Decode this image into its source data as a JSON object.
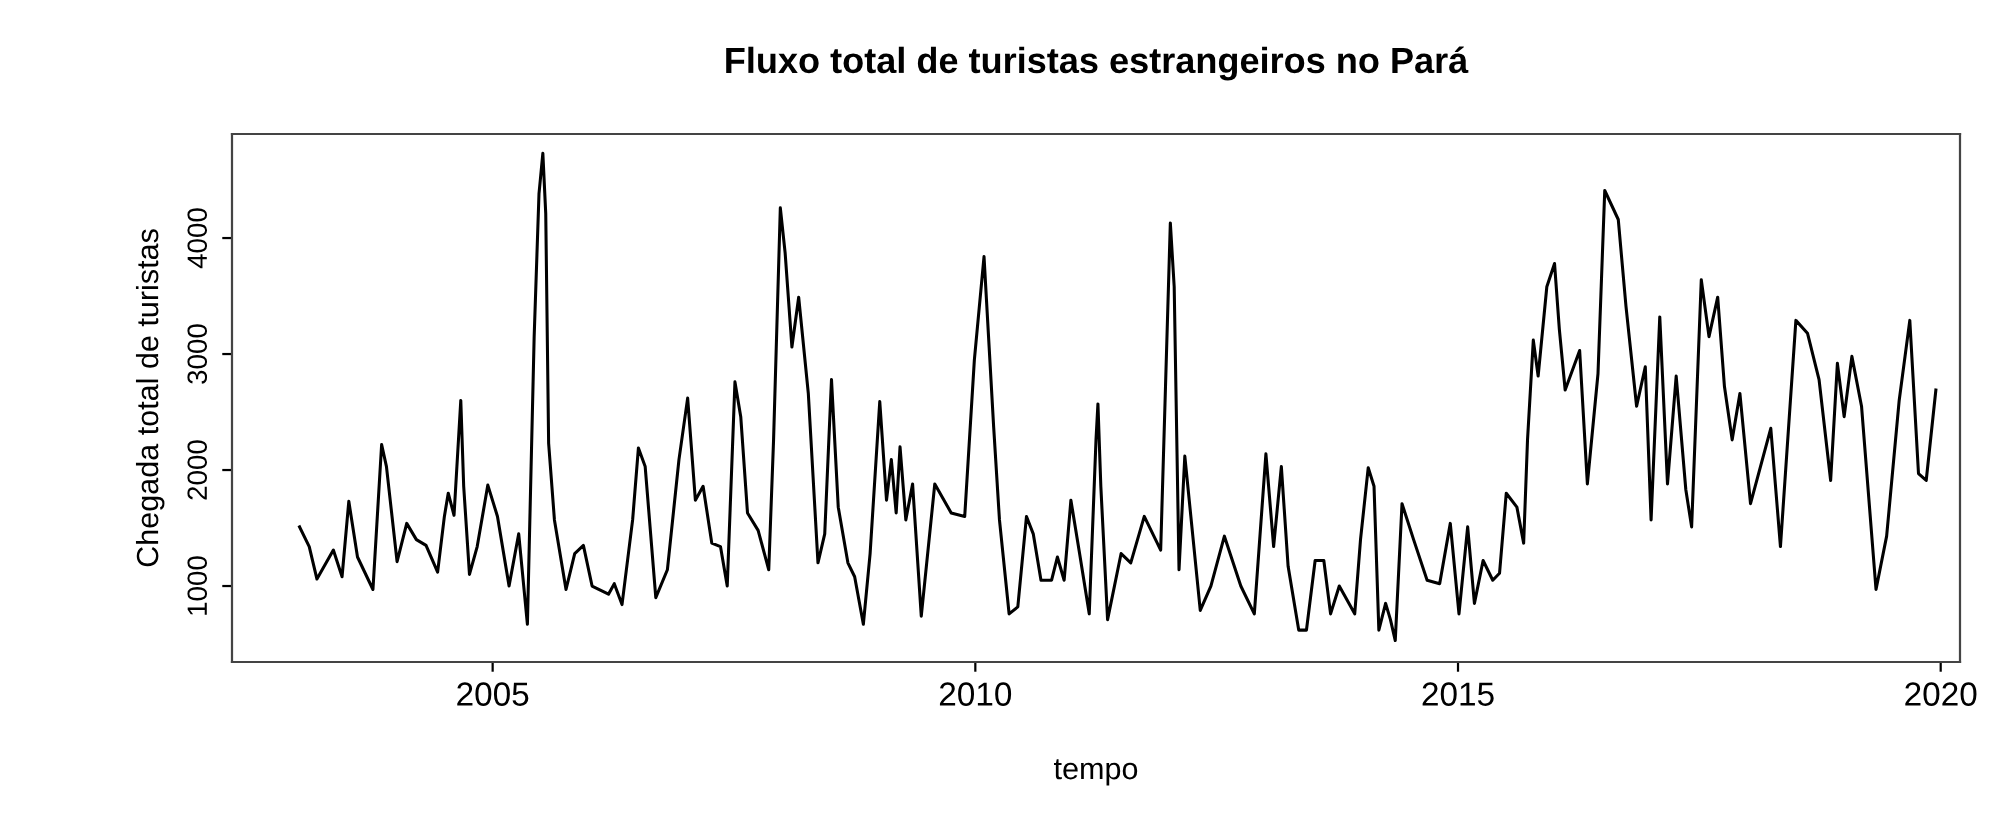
{
  "chart_data": {
    "type": "line",
    "title": "Fluxo total de turistas estrangeiros no Pará",
    "xlabel": "tempo",
    "ylabel": "Chegada total de turistas",
    "xlim": [
      2002.3,
      2020.2
    ],
    "ylim": [
      345,
      4897
    ],
    "xticks": [
      2005,
      2010,
      2015,
      2020
    ],
    "yticks": [
      1000,
      2000,
      3000,
      4000
    ],
    "grid": false,
    "marker": "none",
    "line_style": "solid",
    "series": [
      {
        "color": "#000000",
        "x": [
          2003.0,
          2003.1,
          2003.18,
          2003.35,
          2003.44,
          2003.51,
          2003.6,
          2003.76,
          2003.85,
          2003.9,
          2004.01,
          2004.11,
          2004.21,
          2004.31,
          2004.43,
          2004.5,
          2004.54,
          2004.6,
          2004.67,
          2004.7,
          2004.76,
          2004.84,
          2004.95,
          2005.05,
          2005.17,
          2005.27,
          2005.36,
          2005.43,
          2005.48,
          2005.52,
          2005.55,
          2005.58,
          2005.64,
          2005.76,
          2005.85,
          2005.94,
          2006.03,
          2006.2,
          2006.26,
          2006.34,
          2006.45,
          2006.51,
          2006.58,
          2006.69,
          2006.81,
          2006.93,
          2007.02,
          2007.1,
          2007.18,
          2007.27,
          2007.36,
          2007.43,
          2007.51,
          2007.57,
          2007.64,
          2007.75,
          2007.86,
          2007.91,
          2007.98,
          2008.03,
          2008.1,
          2008.17,
          2008.27,
          2008.37,
          2008.44,
          2008.51,
          2008.58,
          2008.68,
          2008.75,
          2008.84,
          2008.91,
          2009.01,
          2009.08,
          2009.13,
          2009.18,
          2009.22,
          2009.28,
          2009.35,
          2009.44,
          2009.58,
          2009.75,
          2009.89,
          2009.99,
          2010.09,
          2010.19,
          2010.25,
          2010.35,
          2010.44,
          2010.53,
          2010.6,
          2010.68,
          2010.79,
          2010.85,
          2010.92,
          2010.99,
          2011.08,
          2011.18,
          2011.25,
          2011.27,
          2011.3,
          2011.37,
          2011.51,
          2011.61,
          2011.75,
          2011.92,
          2011.97,
          2012.02,
          2012.06,
          2012.11,
          2012.17,
          2012.33,
          2012.44,
          2012.58,
          2012.75,
          2012.89,
          2013.01,
          2013.09,
          2013.17,
          2013.24,
          2013.35,
          2013.43,
          2013.52,
          2013.61,
          2013.68,
          2013.77,
          2013.93,
          2013.99,
          2014.07,
          2014.13,
          2014.18,
          2014.25,
          2014.3,
          2014.35,
          2014.42,
          2014.54,
          2014.68,
          2014.81,
          2014.92,
          2015.01,
          2015.1,
          2015.17,
          2015.26,
          2015.36,
          2015.43,
          2015.5,
          2015.61,
          2015.68,
          2015.72,
          2015.78,
          2015.83,
          2015.92,
          2016.0,
          2016.05,
          2016.11,
          2016.26,
          2016.34,
          2016.45,
          2016.52,
          2016.66,
          2016.74,
          2016.85,
          2016.94,
          2017.0,
          2017.09,
          2017.17,
          2017.26,
          2017.36,
          2017.42,
          2017.52,
          2017.6,
          2017.69,
          2017.76,
          2017.84,
          2017.92,
          2018.03,
          2018.24,
          2018.34,
          2018.5,
          2018.62,
          2018.74,
          2018.86,
          2018.93,
          2019.0,
          2019.08,
          2019.18,
          2019.33,
          2019.44,
          2019.57,
          2019.68,
          2019.77,
          2019.85,
          2019.95
        ],
        "values": [
          1510,
          1340,
          1060,
          1310,
          1080,
          1730,
          1250,
          970,
          2220,
          2030,
          1210,
          1540,
          1400,
          1350,
          1120,
          1600,
          1800,
          1610,
          2600,
          1860,
          1100,
          1340,
          1870,
          1600,
          1000,
          1450,
          670,
          3150,
          4380,
          4730,
          4210,
          2230,
          1570,
          970,
          1280,
          1350,
          1000,
          930,
          1020,
          840,
          1570,
          2190,
          2030,
          900,
          1140,
          2090,
          2620,
          1740,
          1860,
          1370,
          1340,
          1000,
          2760,
          2460,
          1630,
          1480,
          1140,
          2260,
          4260,
          3870,
          3060,
          3490,
          2660,
          1200,
          1450,
          2780,
          1680,
          1200,
          1080,
          670,
          1280,
          2590,
          1740,
          2090,
          1630,
          2200,
          1570,
          1880,
          740,
          1880,
          1630,
          1600,
          2950,
          3840,
          2370,
          1570,
          760,
          820,
          1600,
          1450,
          1050,
          1050,
          1250,
          1050,
          1740,
          1280,
          760,
          2260,
          2570,
          1860,
          710,
          1280,
          1200,
          1600,
          1310,
          2720,
          4130,
          3580,
          1140,
          2120,
          790,
          1000,
          1430,
          1000,
          760,
          2140,
          1340,
          2030,
          1170,
          620,
          620,
          1220,
          1220,
          760,
          1000,
          760,
          1400,
          2020,
          1860,
          620,
          850,
          710,
          530,
          1710,
          1400,
          1050,
          1020,
          1540,
          760,
          1510,
          850,
          1220,
          1050,
          1110,
          1800,
          1680,
          1370,
          2260,
          3120,
          2810,
          3580,
          3780,
          3210,
          2690,
          3030,
          1880,
          2830,
          4410,
          4160,
          3410,
          2550,
          2890,
          1570,
          3320,
          1880,
          2810,
          1830,
          1510,
          3640,
          3150,
          3490,
          2720,
          2260,
          2660,
          1710,
          2360,
          1340,
          3290,
          3180,
          2780,
          1910,
          2920,
          2460,
          2980,
          2550,
          970,
          1430,
          2600,
          3290,
          1970,
          1910,
          2690
        ]
      }
    ]
  }
}
